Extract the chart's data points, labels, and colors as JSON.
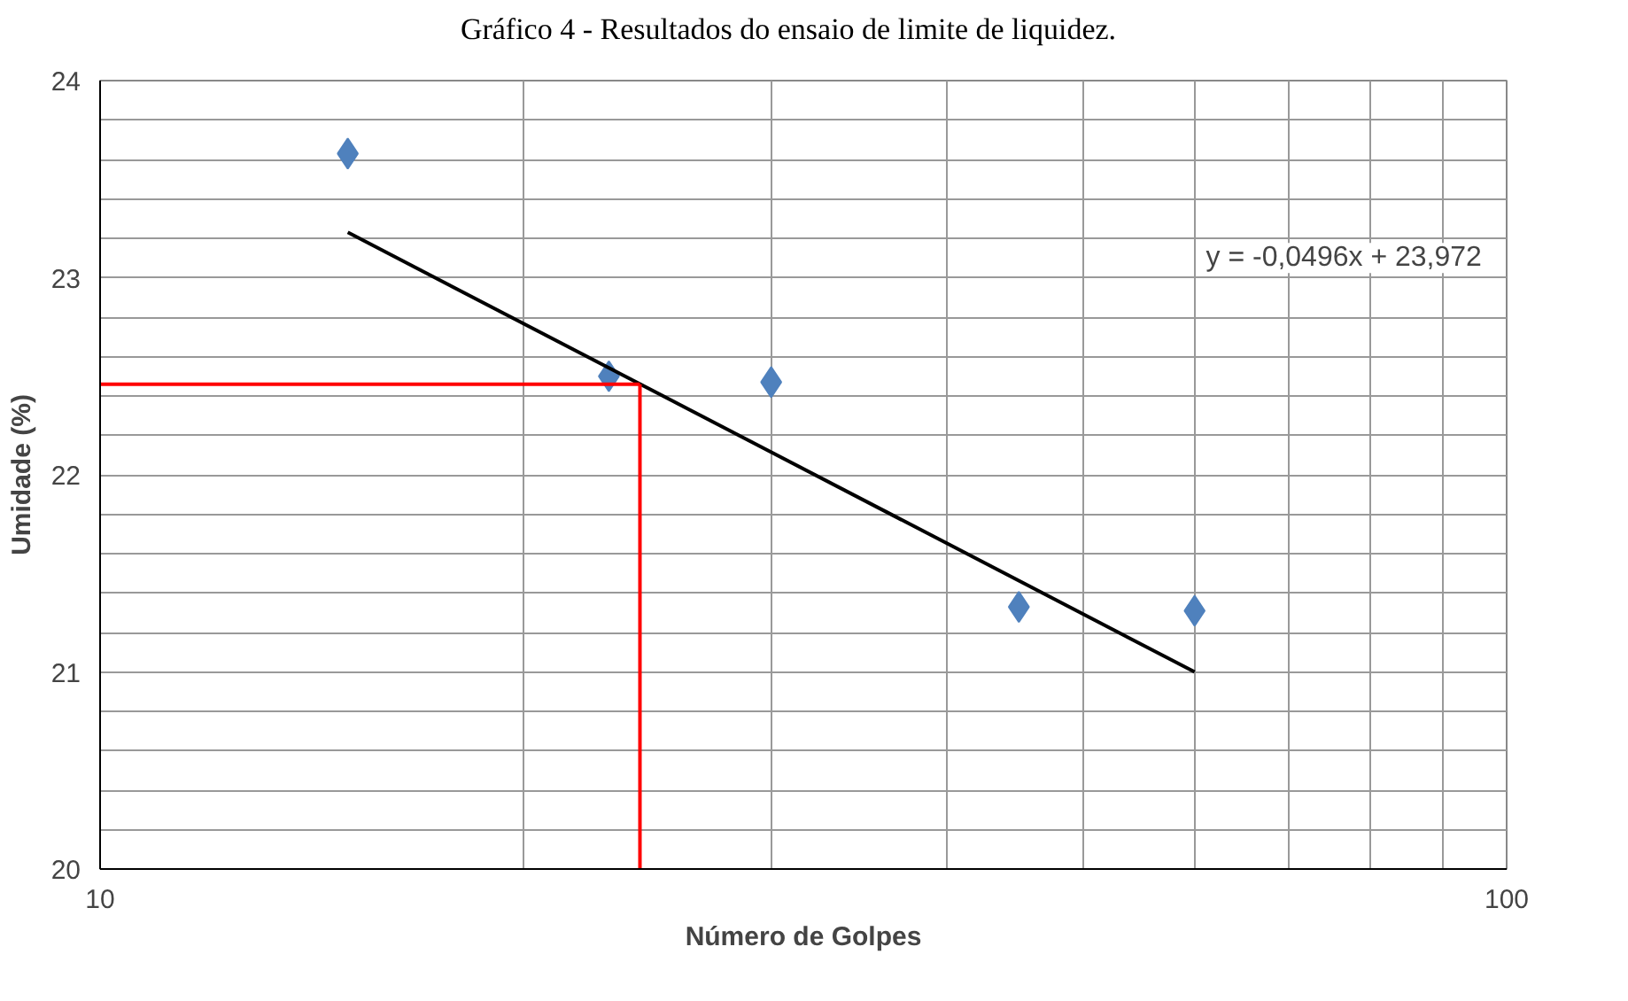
{
  "chart_data": {
    "type": "scatter",
    "title": "Gráfico 4 - Resultados do ensaio de limite de liquidez.",
    "xlabel": "Número de Golpes",
    "ylabel": "Umidade (%)",
    "log": "x",
    "xlim": [
      10,
      100
    ],
    "ylim": [
      20,
      24
    ],
    "xticks": [
      10,
      {
        "value": 20,
        "label": null
      },
      {
        "value": 30,
        "label": null
      },
      {
        "value": 40,
        "label": null
      },
      {
        "value": 50,
        "label": null
      },
      {
        "value": 60,
        "label": null
      },
      {
        "value": 70,
        "label": null
      },
      {
        "value": 80,
        "label": null
      },
      {
        "value": 90,
        "label": null
      },
      100
    ],
    "yticks": [
      20,
      {
        "value": 20.2,
        "label": null
      },
      {
        "value": 20.4,
        "label": null
      },
      {
        "value": 20.6,
        "label": null
      },
      {
        "value": 20.8,
        "label": null
      },
      21,
      {
        "value": 21.2,
        "label": null
      },
      {
        "value": 21.4,
        "label": null
      },
      {
        "value": 21.6,
        "label": null
      },
      {
        "value": 21.8,
        "label": null
      },
      22,
      {
        "value": 22.2,
        "label": null
      },
      {
        "value": 22.4,
        "label": null
      },
      {
        "value": 22.6,
        "label": null
      },
      {
        "value": 22.8,
        "label": null
      },
      23,
      {
        "value": 23.2,
        "label": null
      },
      {
        "value": 23.4,
        "label": null
      },
      {
        "value": 23.6,
        "label": null
      },
      {
        "value": 23.8,
        "label": null
      },
      24
    ],
    "grid": true,
    "series": [
      {
        "marker": "diamond",
        "color": "#4f81bd",
        "x": [
          15,
          23,
          30,
          45,
          60
        ],
        "values": [
          23.63,
          22.5,
          22.47,
          21.33,
          21.31
        ]
      },
      {
        "type": "line",
        "marker": "none",
        "color": "#000000",
        "x": [
          15,
          60
        ],
        "values": [
          23.23,
          21.0
        ]
      }
    ],
    "ref_lines": [
      {
        "axis": "x",
        "value": 24.2,
        "color": "#ff0000"
      },
      {
        "axis": "y",
        "value": 22.46,
        "color": "#ff0000"
      }
    ],
    "annotations": [
      "y = -0,0496x + 23,972"
    ]
  }
}
